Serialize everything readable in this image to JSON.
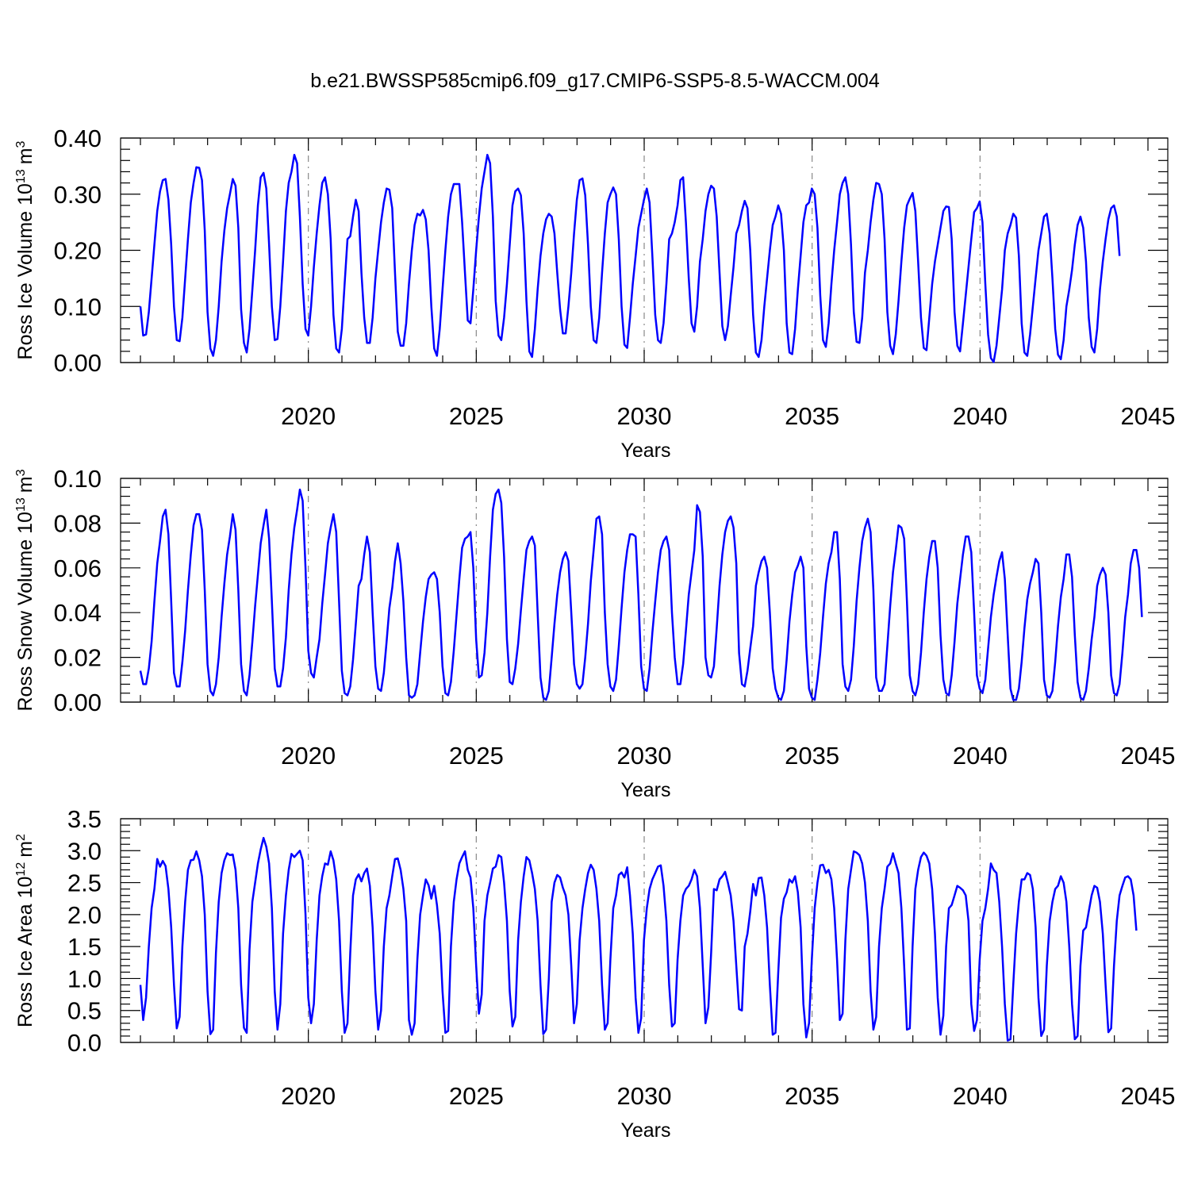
{
  "figure": {
    "title": "b.e21.BWSSP585cmip6.f09_g17.CMIP6-SSP5-8.5-WACCM.004"
  },
  "colors": {
    "series": "#0000ff",
    "grid": "#888888"
  },
  "chart_data": [
    {
      "type": "line",
      "xlabel": "Years",
      "ylabel": "Ross Ice Volume 10",
      "ylabel_exponent": "13",
      "ylabel_unit": "m",
      "ylabel_unit_exponent": "3",
      "xlim": [
        2015,
        2045
      ],
      "ylim": [
        0,
        0.4
      ],
      "grid": "vertical-dashed",
      "x_ticks": [
        "2020",
        "2025",
        "2030",
        "2035",
        "2040",
        "2045"
      ],
      "x_tick_values": [
        2020,
        2025,
        2030,
        2035,
        2040,
        2045
      ],
      "y_ticks": [
        "0.00",
        "0.10",
        "0.20",
        "0.30",
        "0.40"
      ],
      "y_tick_values": [
        0,
        0.1,
        0.2,
        0.3,
        0.4
      ],
      "y_minor_step": 0.02,
      "x_start": 2015.0,
      "x_step": 0.0833,
      "values": [
        0.1,
        0.048,
        0.05,
        0.09,
        0.15,
        0.21,
        0.27,
        0.305,
        0.325,
        0.327,
        0.29,
        0.21,
        0.1,
        0.04,
        0.038,
        0.08,
        0.15,
        0.22,
        0.285,
        0.32,
        0.348,
        0.347,
        0.325,
        0.235,
        0.09,
        0.025,
        0.012,
        0.04,
        0.1,
        0.18,
        0.235,
        0.275,
        0.3,
        0.327,
        0.315,
        0.24,
        0.095,
        0.035,
        0.018,
        0.06,
        0.13,
        0.2,
        0.28,
        0.33,
        0.338,
        0.31,
        0.21,
        0.1,
        0.04,
        0.042,
        0.1,
        0.18,
        0.27,
        0.32,
        0.34,
        0.37,
        0.355,
        0.26,
        0.14,
        0.06,
        0.048,
        0.1,
        0.17,
        0.23,
        0.28,
        0.32,
        0.33,
        0.3,
        0.22,
        0.085,
        0.025,
        0.018,
        0.06,
        0.14,
        0.22,
        0.225,
        0.26,
        0.29,
        0.27,
        0.16,
        0.08,
        0.035,
        0.035,
        0.08,
        0.15,
        0.2,
        0.25,
        0.285,
        0.31,
        0.308,
        0.275,
        0.16,
        0.055,
        0.03,
        0.03,
        0.07,
        0.14,
        0.2,
        0.245,
        0.265,
        0.262,
        0.272,
        0.255,
        0.2,
        0.1,
        0.025,
        0.012,
        0.06,
        0.13,
        0.2,
        0.26,
        0.3,
        0.318,
        0.318,
        0.318,
        0.25,
        0.16,
        0.075,
        0.07,
        0.13,
        0.2,
        0.26,
        0.31,
        0.34,
        0.37,
        0.355,
        0.26,
        0.11,
        0.048,
        0.04,
        0.08,
        0.14,
        0.21,
        0.28,
        0.305,
        0.31,
        0.298,
        0.23,
        0.11,
        0.02,
        0.01,
        0.06,
        0.13,
        0.19,
        0.23,
        0.255,
        0.265,
        0.26,
        0.23,
        0.16,
        0.095,
        0.052,
        0.052,
        0.1,
        0.16,
        0.23,
        0.29,
        0.325,
        0.328,
        0.298,
        0.21,
        0.1,
        0.04,
        0.035,
        0.08,
        0.16,
        0.23,
        0.285,
        0.3,
        0.312,
        0.3,
        0.22,
        0.1,
        0.032,
        0.026,
        0.08,
        0.14,
        0.19,
        0.24,
        0.265,
        0.29,
        0.31,
        0.285,
        0.19,
        0.085,
        0.04,
        0.035,
        0.07,
        0.14,
        0.22,
        0.23,
        0.25,
        0.28,
        0.325,
        0.33,
        0.25,
        0.15,
        0.07,
        0.055,
        0.1,
        0.18,
        0.22,
        0.27,
        0.3,
        0.315,
        0.31,
        0.26,
        0.16,
        0.065,
        0.04,
        0.065,
        0.12,
        0.17,
        0.23,
        0.245,
        0.27,
        0.288,
        0.275,
        0.2,
        0.085,
        0.018,
        0.01,
        0.04,
        0.1,
        0.15,
        0.2,
        0.245,
        0.26,
        0.28,
        0.265,
        0.2,
        0.07,
        0.018,
        0.015,
        0.06,
        0.13,
        0.19,
        0.25,
        0.28,
        0.285,
        0.31,
        0.3,
        0.24,
        0.12,
        0.04,
        0.028,
        0.07,
        0.14,
        0.2,
        0.25,
        0.3,
        0.32,
        0.33,
        0.3,
        0.21,
        0.09,
        0.037,
        0.035,
        0.08,
        0.16,
        0.2,
        0.25,
        0.29,
        0.32,
        0.318,
        0.3,
        0.22,
        0.09,
        0.03,
        0.015,
        0.05,
        0.11,
        0.18,
        0.24,
        0.28,
        0.292,
        0.302,
        0.27,
        0.18,
        0.08,
        0.026,
        0.022,
        0.08,
        0.14,
        0.18,
        0.21,
        0.24,
        0.27,
        0.278,
        0.277,
        0.22,
        0.09,
        0.03,
        0.02,
        0.07,
        0.12,
        0.17,
        0.22,
        0.268,
        0.275,
        0.287,
        0.25,
        0.14,
        0.05,
        0.008,
        0.001,
        0.03,
        0.08,
        0.13,
        0.2,
        0.23,
        0.245,
        0.265,
        0.258,
        0.19,
        0.07,
        0.018,
        0.012,
        0.05,
        0.1,
        0.15,
        0.2,
        0.23,
        0.26,
        0.265,
        0.23,
        0.15,
        0.06,
        0.014,
        0.006,
        0.04,
        0.1,
        0.13,
        0.165,
        0.21,
        0.245,
        0.26,
        0.24,
        0.18,
        0.08,
        0.028,
        0.018,
        0.06,
        0.13,
        0.18,
        0.22,
        0.255,
        0.275,
        0.28,
        0.26,
        0.19
      ]
    },
    {
      "type": "line",
      "xlabel": "Years",
      "ylabel": "Ross Snow Volume 10",
      "ylabel_exponent": "13",
      "ylabel_unit": "m",
      "ylabel_unit_exponent": "3",
      "xlim": [
        2015,
        2045
      ],
      "ylim": [
        0,
        0.1
      ],
      "grid": "vertical-dashed",
      "x_ticks": [
        "2020",
        "2025",
        "2030",
        "2035",
        "2040",
        "2045"
      ],
      "x_tick_values": [
        2020,
        2025,
        2030,
        2035,
        2040,
        2045
      ],
      "y_ticks": [
        "0.00",
        "0.02",
        "0.04",
        "0.06",
        "0.08",
        "0.10"
      ],
      "y_tick_values": [
        0,
        0.02,
        0.04,
        0.06,
        0.08,
        0.1
      ],
      "y_minor_step": 0.004,
      "x_start": 2015.0,
      "x_step": 0.0833,
      "values": [
        0.014,
        0.008,
        0.008,
        0.015,
        0.027,
        0.045,
        0.062,
        0.072,
        0.083,
        0.086,
        0.075,
        0.045,
        0.013,
        0.007,
        0.007,
        0.018,
        0.032,
        0.05,
        0.066,
        0.079,
        0.084,
        0.084,
        0.077,
        0.05,
        0.017,
        0.005,
        0.003,
        0.008,
        0.02,
        0.038,
        0.053,
        0.066,
        0.074,
        0.084,
        0.077,
        0.05,
        0.017,
        0.005,
        0.003,
        0.012,
        0.027,
        0.043,
        0.057,
        0.071,
        0.079,
        0.086,
        0.073,
        0.045,
        0.015,
        0.007,
        0.007,
        0.015,
        0.029,
        0.05,
        0.066,
        0.078,
        0.086,
        0.095,
        0.09,
        0.06,
        0.023,
        0.013,
        0.011,
        0.02,
        0.028,
        0.044,
        0.057,
        0.071,
        0.078,
        0.084,
        0.076,
        0.045,
        0.014,
        0.004,
        0.003,
        0.007,
        0.019,
        0.035,
        0.052,
        0.055,
        0.066,
        0.074,
        0.067,
        0.04,
        0.016,
        0.006,
        0.005,
        0.013,
        0.027,
        0.042,
        0.051,
        0.063,
        0.071,
        0.062,
        0.045,
        0.02,
        0.003,
        0.002,
        0.003,
        0.008,
        0.022,
        0.036,
        0.047,
        0.055,
        0.057,
        0.058,
        0.055,
        0.04,
        0.016,
        0.004,
        0.003,
        0.009,
        0.023,
        0.039,
        0.055,
        0.069,
        0.073,
        0.074,
        0.076,
        0.06,
        0.028,
        0.011,
        0.012,
        0.022,
        0.04,
        0.065,
        0.086,
        0.093,
        0.095,
        0.089,
        0.065,
        0.028,
        0.009,
        0.008,
        0.015,
        0.026,
        0.041,
        0.055,
        0.068,
        0.072,
        0.074,
        0.07,
        0.04,
        0.011,
        0.002,
        0.001,
        0.005,
        0.02,
        0.035,
        0.048,
        0.058,
        0.064,
        0.067,
        0.063,
        0.04,
        0.017,
        0.008,
        0.006,
        0.008,
        0.02,
        0.035,
        0.054,
        0.068,
        0.082,
        0.083,
        0.075,
        0.04,
        0.017,
        0.007,
        0.005,
        0.01,
        0.025,
        0.042,
        0.058,
        0.068,
        0.075,
        0.075,
        0.074,
        0.048,
        0.016,
        0.006,
        0.005,
        0.015,
        0.031,
        0.045,
        0.058,
        0.068,
        0.072,
        0.074,
        0.068,
        0.04,
        0.02,
        0.008,
        0.008,
        0.017,
        0.032,
        0.048,
        0.058,
        0.068,
        0.088,
        0.085,
        0.065,
        0.02,
        0.012,
        0.011,
        0.016,
        0.033,
        0.052,
        0.066,
        0.076,
        0.081,
        0.083,
        0.078,
        0.062,
        0.022,
        0.008,
        0.007,
        0.014,
        0.024,
        0.034,
        0.052,
        0.058,
        0.063,
        0.065,
        0.06,
        0.04,
        0.015,
        0.006,
        0.002,
        0.001,
        0.005,
        0.019,
        0.036,
        0.048,
        0.058,
        0.061,
        0.065,
        0.06,
        0.025,
        0.006,
        0.002,
        0.001,
        0.01,
        0.022,
        0.038,
        0.053,
        0.062,
        0.067,
        0.076,
        0.076,
        0.055,
        0.017,
        0.007,
        0.005,
        0.01,
        0.025,
        0.045,
        0.06,
        0.072,
        0.078,
        0.082,
        0.076,
        0.05,
        0.011,
        0.005,
        0.005,
        0.008,
        0.025,
        0.043,
        0.058,
        0.068,
        0.079,
        0.078,
        0.073,
        0.045,
        0.012,
        0.005,
        0.003,
        0.008,
        0.022,
        0.04,
        0.055,
        0.065,
        0.072,
        0.072,
        0.06,
        0.03,
        0.01,
        0.004,
        0.003,
        0.012,
        0.027,
        0.044,
        0.055,
        0.066,
        0.074,
        0.074,
        0.067,
        0.04,
        0.012,
        0.006,
        0.004,
        0.01,
        0.024,
        0.038,
        0.048,
        0.056,
        0.063,
        0.067,
        0.055,
        0.03,
        0.006,
        0.001,
        0.001,
        0.006,
        0.018,
        0.033,
        0.046,
        0.053,
        0.058,
        0.064,
        0.062,
        0.04,
        0.01,
        0.003,
        0.002,
        0.005,
        0.018,
        0.034,
        0.047,
        0.055,
        0.066,
        0.066,
        0.056,
        0.03,
        0.009,
        0.002,
        0.001,
        0.005,
        0.015,
        0.028,
        0.038,
        0.052,
        0.057,
        0.06,
        0.057,
        0.04,
        0.012,
        0.004,
        0.003,
        0.008,
        0.022,
        0.038,
        0.048,
        0.062,
        0.068,
        0.068,
        0.06,
        0.038
      ]
    },
    {
      "type": "line",
      "xlabel": "Years",
      "ylabel": "Ross Ice Area 10",
      "ylabel_exponent": "12",
      "ylabel_unit": "m",
      "ylabel_unit_exponent": "2",
      "xlim": [
        2015,
        2045
      ],
      "ylim": [
        0,
        3.5
      ],
      "grid": "vertical-dashed",
      "x_ticks": [
        "2020",
        "2025",
        "2030",
        "2035",
        "2040",
        "2045"
      ],
      "x_tick_values": [
        2020,
        2025,
        2030,
        2035,
        2040,
        2045
      ],
      "y_ticks": [
        "0.0",
        "0.5",
        "1.0",
        "1.5",
        "2.0",
        "2.5",
        "3.0",
        "3.5"
      ],
      "y_tick_values": [
        0,
        0.5,
        1.0,
        1.5,
        2.0,
        2.5,
        3.0,
        3.5
      ],
      "y_minor_step": 0.1,
      "x_start": 2015.0,
      "x_step": 0.0833,
      "values": [
        0.9,
        0.35,
        0.7,
        1.5,
        2.1,
        2.4,
        2.87,
        2.75,
        2.84,
        2.76,
        2.4,
        1.8,
        0.9,
        0.22,
        0.4,
        1.5,
        2.2,
        2.7,
        2.85,
        2.86,
        2.99,
        2.85,
        2.6,
        2.0,
        0.8,
        0.13,
        0.2,
        1.4,
        2.2,
        2.65,
        2.85,
        2.96,
        2.93,
        2.94,
        2.7,
        2.1,
        0.9,
        0.23,
        0.15,
        1.45,
        2.2,
        2.5,
        2.8,
        3.02,
        3.2,
        3.06,
        2.8,
        2.1,
        0.8,
        0.2,
        0.6,
        1.7,
        2.3,
        2.7,
        2.95,
        2.9,
        2.95,
        3.0,
        2.85,
        2.0,
        0.7,
        0.3,
        0.6,
        1.6,
        2.3,
        2.6,
        2.8,
        2.78,
        2.99,
        2.85,
        2.55,
        1.9,
        0.8,
        0.15,
        0.3,
        1.4,
        2.3,
        2.55,
        2.63,
        2.52,
        2.65,
        2.72,
        2.45,
        1.8,
        0.8,
        0.2,
        0.5,
        1.5,
        2.1,
        2.3,
        2.6,
        2.87,
        2.88,
        2.7,
        2.4,
        1.9,
        0.35,
        0.12,
        0.3,
        1.3,
        2.0,
        2.3,
        2.55,
        2.46,
        2.25,
        2.45,
        2.15,
        1.7,
        0.8,
        0.15,
        0.18,
        1.5,
        2.2,
        2.55,
        2.8,
        2.9,
        2.99,
        2.7,
        2.58,
        2.1,
        1.2,
        0.45,
        0.75,
        1.9,
        2.3,
        2.5,
        2.72,
        2.75,
        2.93,
        2.9,
        2.5,
        1.9,
        0.8,
        0.25,
        0.4,
        1.6,
        2.2,
        2.6,
        2.9,
        2.85,
        2.65,
        2.4,
        1.9,
        0.9,
        0.13,
        0.2,
        1.0,
        2.2,
        2.5,
        2.62,
        2.58,
        2.42,
        2.3,
        2.0,
        1.2,
        0.3,
        0.6,
        1.6,
        2.1,
        2.4,
        2.65,
        2.78,
        2.7,
        2.4,
        1.9,
        0.9,
        0.2,
        0.3,
        1.3,
        2.1,
        2.3,
        2.62,
        2.66,
        2.58,
        2.74,
        2.3,
        1.7,
        0.7,
        0.15,
        0.38,
        1.6,
        2.1,
        2.4,
        2.55,
        2.65,
        2.75,
        2.77,
        2.45,
        1.9,
        0.9,
        0.25,
        0.3,
        1.3,
        1.9,
        2.3,
        2.4,
        2.45,
        2.55,
        2.7,
        2.6,
        2.1,
        1.2,
        0.3,
        0.55,
        1.4,
        2.4,
        2.38,
        2.55,
        2.6,
        2.67,
        2.5,
        2.3,
        1.9,
        1.2,
        0.52,
        0.5,
        1.5,
        1.7,
        2.05,
        2.48,
        2.3,
        2.57,
        2.58,
        2.3,
        1.8,
        0.9,
        0.12,
        0.15,
        1.1,
        1.95,
        2.25,
        2.35,
        2.55,
        2.5,
        2.6,
        2.35,
        1.8,
        0.6,
        0.08,
        0.3,
        1.3,
        2.1,
        2.5,
        2.77,
        2.78,
        2.65,
        2.7,
        2.55,
        2.1,
        1.3,
        0.35,
        0.45,
        1.6,
        2.4,
        2.7,
        2.99,
        2.97,
        2.93,
        2.8,
        2.5,
        1.9,
        0.8,
        0.2,
        0.4,
        1.5,
        2.1,
        2.4,
        2.75,
        2.8,
        2.96,
        2.8,
        2.65,
        2.1,
        1.2,
        0.2,
        0.22,
        1.5,
        2.4,
        2.7,
        2.9,
        2.97,
        2.92,
        2.8,
        2.4,
        1.7,
        0.7,
        0.12,
        0.42,
        1.5,
        2.1,
        2.15,
        2.3,
        2.45,
        2.42,
        2.38,
        2.3,
        1.9,
        0.6,
        0.18,
        0.35,
        1.3,
        1.9,
        2.1,
        2.4,
        2.8,
        2.7,
        2.65,
        2.2,
        1.5,
        0.6,
        0.03,
        0.05,
        0.9,
        1.7,
        2.2,
        2.55,
        2.55,
        2.65,
        2.62,
        2.4,
        1.8,
        0.7,
        0.1,
        0.2,
        1.2,
        1.9,
        2.2,
        2.4,
        2.45,
        2.6,
        2.5,
        2.2,
        1.5,
        0.6,
        0.05,
        0.1,
        1.2,
        1.75,
        1.8,
        2.05,
        2.3,
        2.45,
        2.42,
        2.2,
        1.7,
        0.9,
        0.16,
        0.22,
        1.2,
        1.9,
        2.3,
        2.45,
        2.58,
        2.6,
        2.55,
        2.3,
        1.75
      ]
    }
  ]
}
